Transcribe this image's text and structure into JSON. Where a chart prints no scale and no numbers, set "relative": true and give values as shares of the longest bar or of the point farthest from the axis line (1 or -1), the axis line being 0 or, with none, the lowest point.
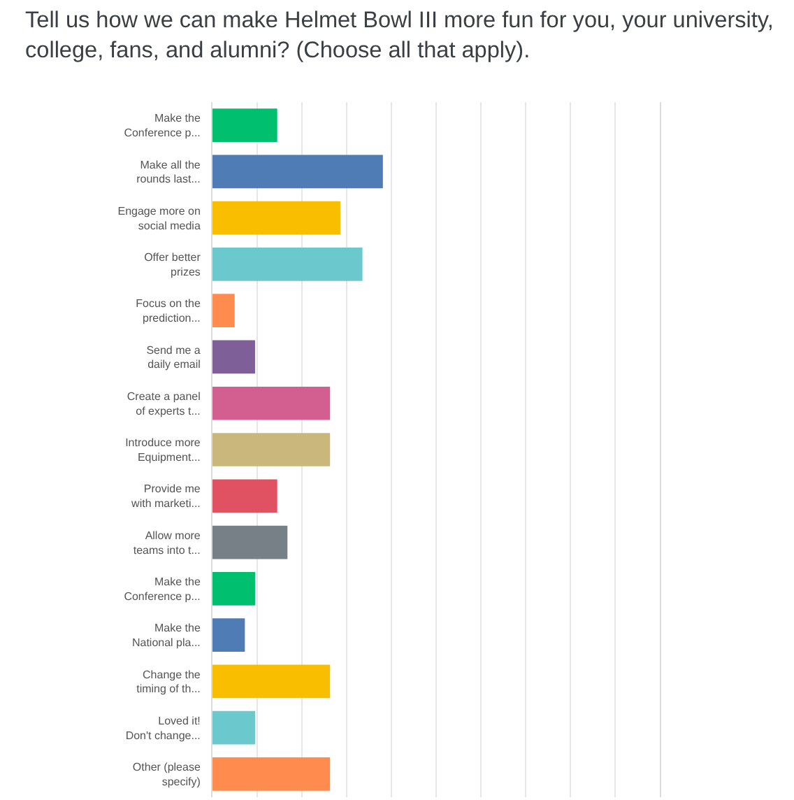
{
  "chart_data": {
    "type": "bar",
    "orientation": "horizontal",
    "relative": true,
    "grid": "x",
    "title": "Tell us how we can make Helmet Bowl III more fun for you, your university, college, fans, and alumni? (Choose all that apply).",
    "categories": [
      "Make the\nConference p...",
      "Make all the\nrounds last...",
      "Engage more on\nsocial media",
      "Offer better\nprizes",
      "Focus on the\nprediction...",
      "Send me a\ndaily email",
      "Create a panel\nof experts t...",
      "Introduce more\nEquipment...",
      "Provide me\nwith marketi...",
      "Allow more\nteams into t...",
      "Make the\nConference p...",
      "Make the\nNational pla...",
      "Change the\ntiming of th...",
      "Loved it!\nDon't change...",
      "Other (please\nspecify)"
    ],
    "values": [
      0.38,
      1,
      0.75,
      0.88,
      0.13,
      0.25,
      0.69,
      0.69,
      0.38,
      0.44,
      0.25,
      0.19,
      0.69,
      0.25,
      0.69
    ],
    "colors": [
      "#00bf6f",
      "#507cb6",
      "#f9be00",
      "#6bc8cd",
      "#ff8b4f",
      "#7f5f98",
      "#d25f90",
      "#c9b77b",
      "#e05161",
      "#768086",
      "#00bf6f",
      "#507cb6",
      "#f9be00",
      "#6bc8cd",
      "#ff8b4f"
    ]
  }
}
